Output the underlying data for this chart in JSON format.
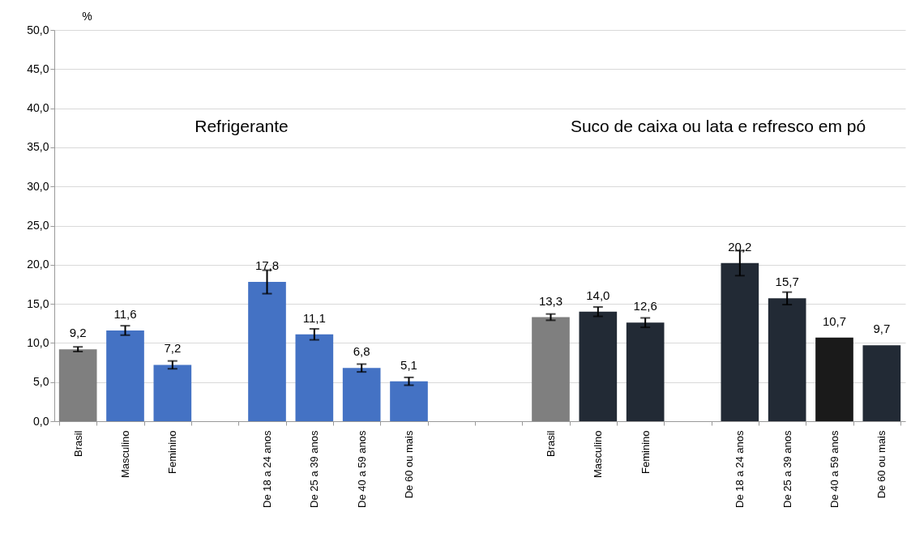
{
  "chart_data": {
    "type": "bar",
    "ylabel": "%",
    "categories": [
      "Brasil",
      "Masculino",
      "Feminino",
      null,
      "De 18 a 24 anos",
      "De 25 a 39 anos",
      "De 40 a 59 anos",
      "De 60 ou mais",
      null,
      null,
      "Brasil",
      "Masculino",
      "Feminino",
      null,
      "De 18 a 24 anos",
      "De 25 a 39 anos",
      "De 40 a 59 anos",
      "De 60 ou mais"
    ],
    "values": [
      9.2,
      11.6,
      7.2,
      null,
      17.8,
      11.1,
      6.8,
      5.1,
      null,
      null,
      13.3,
      14.0,
      12.6,
      null,
      20.2,
      15.7,
      10.7,
      9.7
    ],
    "value_labels": [
      "9,2",
      "11,6",
      "7,2",
      null,
      "17,8",
      "11,1",
      "6,8",
      "5,1",
      null,
      null,
      "13,3",
      "14,0",
      "12,6",
      null,
      "20,2",
      "15,7",
      "10,7",
      "9,7"
    ],
    "errors": [
      0.3,
      0.6,
      0.5,
      null,
      1.5,
      0.7,
      0.5,
      0.5,
      null,
      null,
      0.4,
      0.6,
      0.6,
      null,
      1.6,
      0.8,
      null,
      null
    ],
    "colors": [
      "#7f7f7f",
      "#4472c4",
      "#4472c4",
      "#4472c4",
      "#4472c4",
      "#4472c4",
      "#4472c4",
      "#4472c4",
      "#4472c4",
      "#222a35",
      "#7f7f7f",
      "#222a35",
      "#222a35",
      "#222a35",
      "#222a35",
      "#222a35",
      "#1a1a1a",
      "#222a35"
    ],
    "annotations": [
      "Refrigerante",
      "Suco de caixa ou lata e refresco em pó"
    ],
    "ylim": [
      0,
      50
    ],
    "yticks": [
      {
        "value": 0,
        "label": "0,0"
      },
      {
        "value": 5,
        "label": "5,0"
      },
      {
        "value": 10,
        "label": "10,0"
      },
      {
        "value": 15,
        "label": "15,0"
      },
      {
        "value": 20,
        "label": "20,0"
      },
      {
        "value": 25,
        "label": "25,0"
      },
      {
        "value": 30,
        "label": "30,0"
      },
      {
        "value": 35,
        "label": "35,0"
      },
      {
        "value": 40,
        "label": "40,0"
      },
      {
        "value": 45,
        "label": "45,0"
      },
      {
        "value": 50,
        "label": "50,0"
      }
    ],
    "grid": "y"
  }
}
